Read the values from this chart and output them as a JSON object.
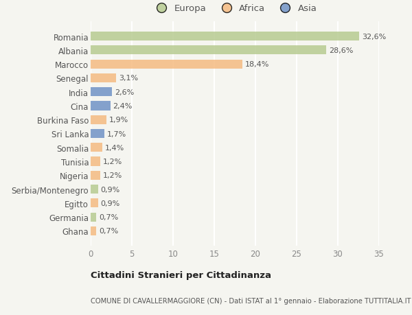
{
  "categories": [
    "Romania",
    "Albania",
    "Marocco",
    "Senegal",
    "India",
    "Cina",
    "Burkina Faso",
    "Sri Lanka",
    "Somalia",
    "Tunisia",
    "Nigeria",
    "Serbia/Montenegro",
    "Egitto",
    "Germania",
    "Ghana"
  ],
  "values": [
    32.6,
    28.6,
    18.4,
    3.1,
    2.6,
    2.4,
    1.9,
    1.7,
    1.4,
    1.2,
    1.2,
    0.9,
    0.9,
    0.7,
    0.7
  ],
  "labels": [
    "32,6%",
    "28,6%",
    "18,4%",
    "3,1%",
    "2,6%",
    "2,4%",
    "1,9%",
    "1,7%",
    "1,4%",
    "1,2%",
    "1,2%",
    "0,9%",
    "0,9%",
    "0,7%",
    "0,7%"
  ],
  "colors": [
    "#b5c98e",
    "#b5c98e",
    "#f4b97d",
    "#f4b97d",
    "#6b8fc4",
    "#6b8fc4",
    "#f4b97d",
    "#6b8fc4",
    "#f4b97d",
    "#f4b97d",
    "#f4b97d",
    "#b5c98e",
    "#f4b97d",
    "#b5c98e",
    "#f4b97d"
  ],
  "continent_colors": {
    "Europa": "#b5c98e",
    "Africa": "#f4b97d",
    "Asia": "#6b8fc4"
  },
  "xlim": [
    0,
    35
  ],
  "xticks": [
    0,
    5,
    10,
    15,
    20,
    25,
    30,
    35
  ],
  "title": "Cittadini Stranieri per Cittadinanza",
  "subtitle": "COMUNE DI CAVALLERMAGGIORE (CN) - Dati ISTAT al 1° gennaio - Elaborazione TUTTITALIA.IT",
  "bg_color": "#f5f5f0",
  "grid_color": "#ffffff",
  "bar_alpha": 0.82
}
